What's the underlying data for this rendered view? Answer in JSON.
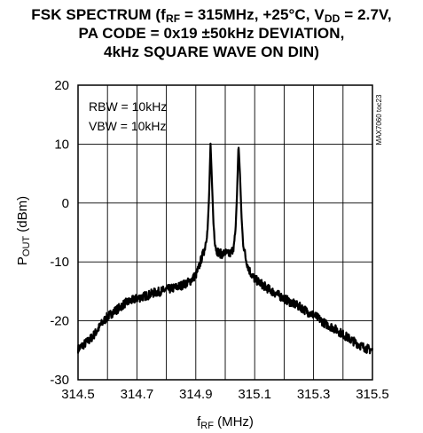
{
  "chart_data": {
    "type": "line",
    "title": {
      "line1_prefix": "FSK SPECTRUM (f",
      "line1_sub": "RF",
      "line1_mid": " = 315MHz, +25°C, V",
      "line1_sub2": "DD",
      "line1_suffix": " = 2.7V,",
      "line2": "PA CODE = 0x19 ±50kHz DEVIATION,",
      "line3": "4kHz SQUARE WAVE ON DIN)"
    },
    "xlabel": {
      "main": "f",
      "sub": "RF",
      "suffix": " (MHz)"
    },
    "ylabel": {
      "main": "P",
      "sub": "OUT",
      "suffix": " (dBm)"
    },
    "xlim": [
      314.5,
      315.5
    ],
    "ylim": [
      -30,
      20
    ],
    "xticks": [
      314.5,
      314.6,
      314.7,
      314.8,
      314.9,
      315.0,
      315.1,
      315.2,
      315.3,
      315.4,
      315.5
    ],
    "xtick_labels": [
      "314.5",
      "314.7",
      "314.9",
      "315.1",
      "315.3",
      "315.5"
    ],
    "xtick_label_values": [
      314.5,
      314.7,
      314.9,
      315.1,
      315.3,
      315.5
    ],
    "yticks": [
      -30,
      -20,
      -10,
      0,
      10,
      20
    ],
    "ytick_labels": [
      "-30",
      "-20",
      "-10",
      "0",
      "10",
      "20"
    ],
    "grid": true,
    "annotations": [
      "RBW = 10kHz",
      "VBW = 10kHz"
    ],
    "figure_code": "MAX7060 toc23",
    "series": [
      {
        "x": [
          314.5,
          314.52,
          314.54,
          314.56,
          314.58,
          314.6,
          314.62,
          314.64,
          314.66,
          314.68,
          314.7,
          314.72,
          314.74,
          314.76,
          314.78,
          314.8,
          314.82,
          314.84,
          314.86,
          314.88,
          314.9,
          314.91,
          314.92,
          314.93,
          314.94,
          314.945,
          314.95,
          314.955,
          314.96,
          314.965,
          314.97,
          314.98,
          314.99,
          315.0,
          315.01,
          315.02,
          315.03,
          315.035,
          315.04,
          315.045,
          315.05,
          315.055,
          315.06,
          315.07,
          315.08,
          315.09,
          315.1,
          315.12,
          315.14,
          315.16,
          315.18,
          315.2,
          315.22,
          315.24,
          315.26,
          315.28,
          315.3,
          315.32,
          315.34,
          315.36,
          315.38,
          315.4,
          315.42,
          315.44,
          315.46,
          315.48,
          315.5
        ],
        "y": [
          -24.8,
          -24.0,
          -23.2,
          -22.0,
          -20.5,
          -19.3,
          -18.5,
          -17.8,
          -17.0,
          -16.6,
          -16.2,
          -15.9,
          -15.6,
          -15.2,
          -15.0,
          -14.7,
          -14.5,
          -14.2,
          -13.8,
          -13.3,
          -12.2,
          -11.0,
          -9.3,
          -7.8,
          -4.5,
          1.0,
          10.0,
          3.5,
          -3.5,
          -6.5,
          -8.0,
          -8.5,
          -8.7,
          -8.4,
          -8.7,
          -8.5,
          -7.2,
          -4.5,
          1.5,
          10.0,
          5.0,
          -2.0,
          -6.5,
          -9.5,
          -11.2,
          -12.2,
          -12.9,
          -13.6,
          -14.4,
          -15.0,
          -15.6,
          -16.2,
          -16.8,
          -17.3,
          -17.8,
          -18.5,
          -19.0,
          -19.7,
          -20.5,
          -21.0,
          -21.6,
          -22.3,
          -23.0,
          -23.6,
          -24.2,
          -24.7,
          -25.0
        ]
      }
    ]
  }
}
